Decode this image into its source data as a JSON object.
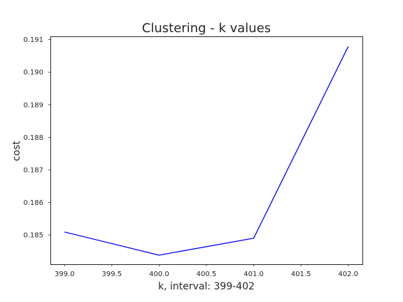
{
  "chart_data": {
    "type": "line",
    "title": "Clustering - k values",
    "xlabel": "k, interval: 399-402",
    "ylabel": "cost",
    "x": [
      399,
      400,
      401,
      402
    ],
    "series": [
      {
        "values": [
          0.18509,
          0.18438,
          0.1849,
          0.19079
        ],
        "color": "#0000ff"
      }
    ],
    "xlim": [
      398.85,
      402.15
    ],
    "ylim": [
      0.1841,
      0.1911
    ],
    "xticks": [
      399.0,
      399.5,
      400.0,
      400.5,
      401.0,
      401.5,
      402.0
    ],
    "xtick_labels": [
      "399.0",
      "399.5",
      "400.0",
      "400.5",
      "401.0",
      "401.5",
      "402.0"
    ],
    "yticks": [
      0.185,
      0.186,
      0.187,
      0.188,
      0.189,
      0.19,
      0.191
    ],
    "ytick_labels": [
      "0.185",
      "0.186",
      "0.187",
      "0.188",
      "0.189",
      "0.190",
      "0.191"
    ],
    "grid": false,
    "legend": false
  }
}
